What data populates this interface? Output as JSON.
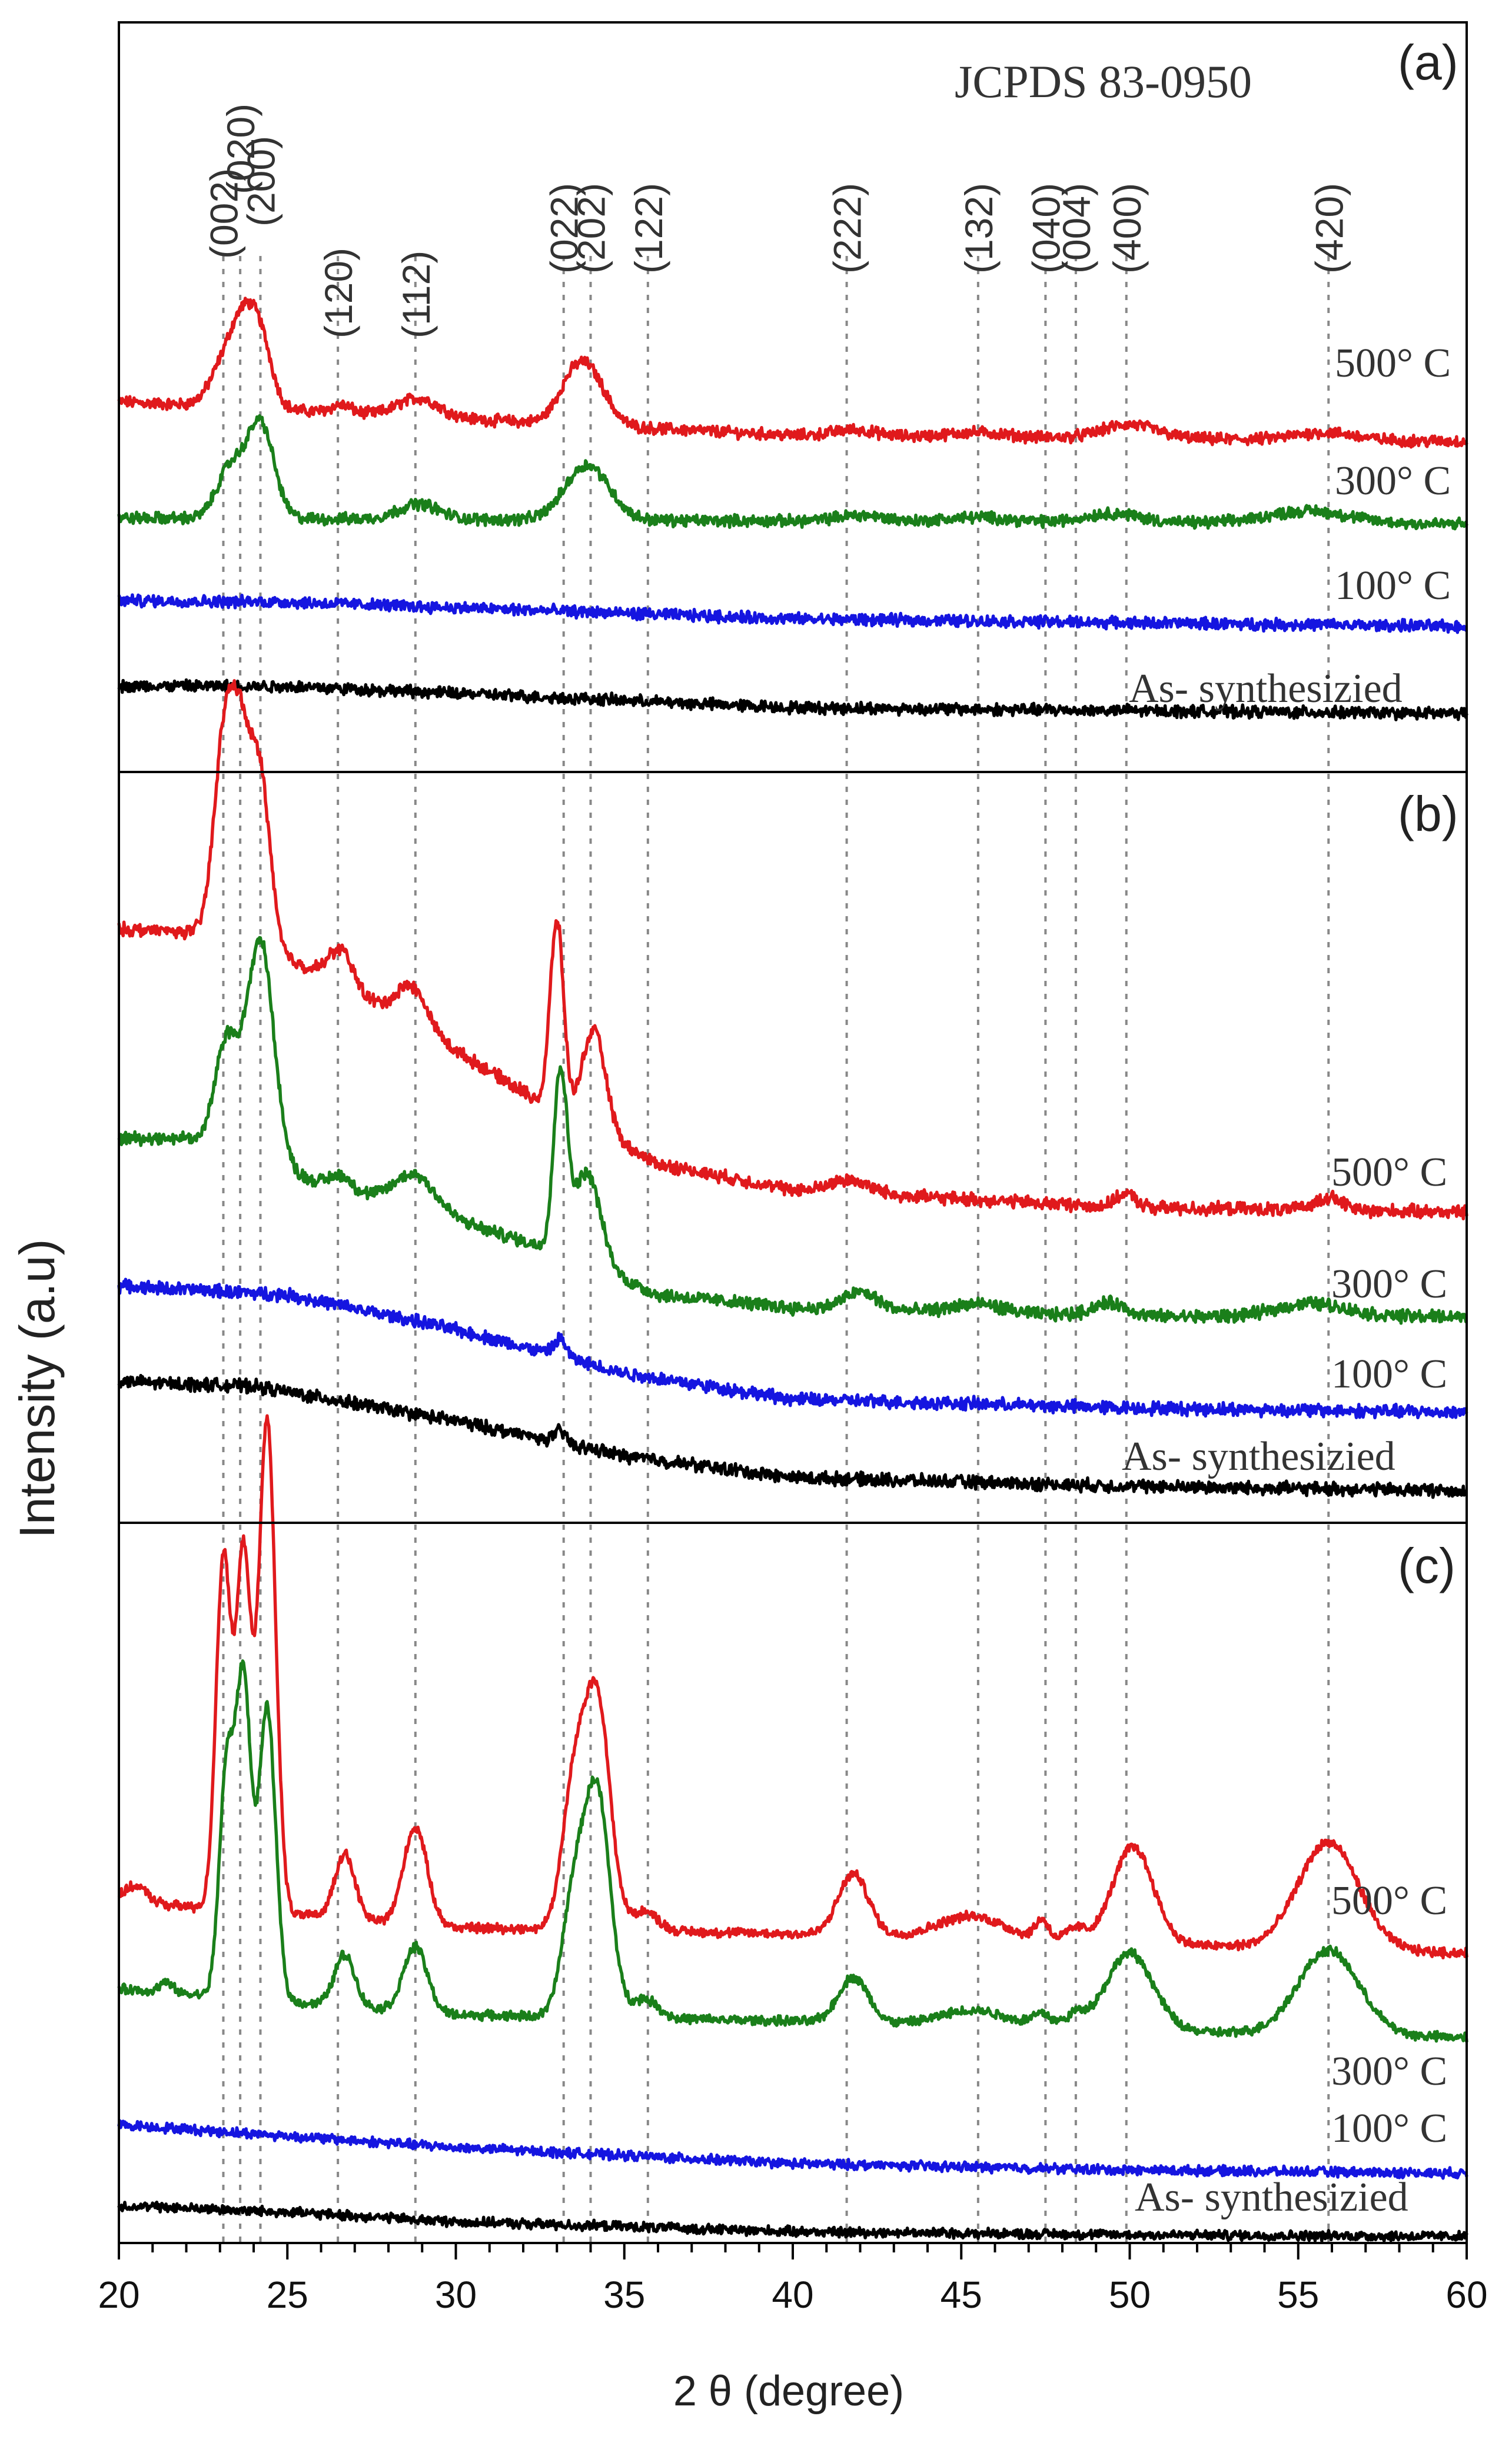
{
  "figure": {
    "reference_label": "JCPDS 83-0950",
    "y_axis_label": "Intensity (a.u)",
    "x_axis_label": "2 θ (degree)",
    "tick_labels": [
      "20",
      "25",
      "30",
      "35",
      "40",
      "45",
      "50",
      "55",
      "60"
    ],
    "colors": {
      "s500": "#e0191c",
      "s300": "#1a7f1a",
      "s100": "#1515e0",
      "as": "#000000",
      "frame": "#000000",
      "ref_line": "#888888"
    }
  },
  "chart_data": {
    "type": "line",
    "xlabel": "2 θ (degree)",
    "ylabel": "Intensity (a.u)",
    "xlim": [
      20,
      60
    ],
    "x_ticks": [
      20,
      25,
      30,
      35,
      40,
      45,
      50,
      55,
      60
    ],
    "grid": false,
    "reference": {
      "label": "JCPDS 83-0950",
      "peaks": [
        {
          "hkl": "(002)",
          "x": 23.1
        },
        {
          "hkl": "(020)",
          "x": 23.6
        },
        {
          "hkl": "(200)",
          "x": 24.2
        },
        {
          "hkl": "(120)",
          "x": 26.5
        },
        {
          "hkl": "(112)",
          "x": 28.8
        },
        {
          "hkl": "(022)",
          "x": 33.2
        },
        {
          "hkl": "(202)",
          "x": 34.0
        },
        {
          "hkl": "(122)",
          "x": 35.7
        },
        {
          "hkl": "(222)",
          "x": 41.6
        },
        {
          "hkl": "(132)",
          "x": 45.5
        },
        {
          "hkl": "(040)",
          "x": 47.5
        },
        {
          "hkl": "(004)",
          "x": 48.4
        },
        {
          "hkl": "(400)",
          "x": 49.9
        },
        {
          "hkl": "(420)",
          "x": 55.9
        }
      ]
    },
    "panels": [
      {
        "label": "(a)",
        "series": [
          {
            "name": "500° C",
            "color_key": "s500",
            "baseline": [
              [
                20,
                11.2
              ],
              [
                40,
                10.1
              ],
              [
                60,
                9.9
              ]
            ],
            "peaks": [
              [
                23.2,
                1.5,
                0.45
              ],
              [
                23.7,
                1.8,
                0.35
              ],
              [
                24.2,
                2.1,
                0.35
              ],
              [
                26.6,
                0.25,
                0.3
              ],
              [
                28.9,
                0.6,
                0.6
              ],
              [
                33.4,
                1.0,
                0.45
              ],
              [
                34.0,
                1.5,
                0.5
              ],
              [
                41.8,
                0.2,
                0.6
              ],
              [
                45.5,
                0.15,
                0.8
              ],
              [
                50.0,
                0.45,
                0.8
              ],
              [
                55.8,
                0.25,
                0.9
              ]
            ]
          },
          {
            "name": "300° C",
            "color_key": "s300",
            "baseline": [
              [
                20,
                7.4
              ],
              [
                40,
                7.3
              ],
              [
                60,
                7.2
              ]
            ],
            "peaks": [
              [
                23.3,
                1.6,
                0.4
              ],
              [
                24.2,
                3.1,
                0.4
              ],
              [
                28.9,
                0.5,
                0.6
              ],
              [
                33.9,
                1.8,
                0.65
              ],
              [
                42.0,
                0.2,
                0.7
              ],
              [
                45.5,
                0.15,
                0.9
              ],
              [
                49.5,
                0.3,
                0.8
              ],
              [
                55.3,
                0.4,
                1.2
              ]
            ]
          },
          {
            "name": "100° C",
            "color_key": "s100",
            "baseline": [
              [
                20,
                4.7
              ],
              [
                25,
                4.65
              ],
              [
                40,
                4.1
              ],
              [
                60,
                3.85
              ]
            ],
            "peaks": []
          },
          {
            "name": "As- synthesizied",
            "color_key": "as",
            "baseline": [
              [
                20,
                1.9
              ],
              [
                25,
                1.9
              ],
              [
                40,
                1.2
              ],
              [
                60,
                1.0
              ]
            ],
            "peaks": []
          }
        ]
      },
      {
        "label": "(b)",
        "series": [
          {
            "name": "500° C",
            "color_key": "s500",
            "baseline": [
              [
                20,
                13.8
              ],
              [
                23,
                13.7
              ],
              [
                26,
                12.8
              ],
              [
                30,
                11.0
              ],
              [
                33,
                9.6
              ],
              [
                36,
                8.4
              ],
              [
                40,
                7.8
              ],
              [
                50,
                7.4
              ],
              [
                60,
                7.3
              ]
            ],
            "peaks": [
              [
                23.1,
                4.0,
                0.3
              ],
              [
                23.6,
                4.1,
                0.3
              ],
              [
                24.2,
                3.8,
                0.3
              ],
              [
                26.6,
                0.8,
                0.35
              ],
              [
                28.7,
                0.9,
                0.45
              ],
              [
                33.0,
                4.4,
                0.2
              ],
              [
                34.1,
                2.3,
                0.35
              ],
              [
                41.7,
                0.3,
                0.6
              ],
              [
                49.9,
                0.3,
                0.3
              ],
              [
                55.9,
                0.3,
                0.4
              ]
            ]
          },
          {
            "name": "300° C",
            "color_key": "s300",
            "baseline": [
              [
                20,
                9.0
              ],
              [
                22,
                9.0
              ],
              [
                25,
                8.2
              ],
              [
                30,
                7.1
              ],
              [
                33,
                6.4
              ],
              [
                36,
                5.4
              ],
              [
                40,
                5.1
              ],
              [
                50,
                4.9
              ],
              [
                60,
                4.9
              ]
            ],
            "peaks": [
              [
                23.2,
                2.5,
                0.35
              ],
              [
                24.2,
                5.1,
                0.4
              ],
              [
                26.6,
                0.3,
                0.3
              ],
              [
                28.8,
                0.8,
                0.6
              ],
              [
                33.1,
                4.0,
                0.2
              ],
              [
                33.9,
                2.1,
                0.4
              ],
              [
                42.0,
                0.4,
                0.5
              ],
              [
                45.5,
                0.2,
                0.7
              ],
              [
                49.4,
                0.3,
                0.5
              ],
              [
                55.4,
                0.3,
                1.0
              ]
            ]
          },
          {
            "name": "100° C",
            "color_key": "s100",
            "baseline": [
              [
                20,
                5.6
              ],
              [
                25,
                5.4
              ],
              [
                30,
                4.6
              ],
              [
                35,
                3.6
              ],
              [
                40,
                3.0
              ],
              [
                50,
                2.8
              ],
              [
                60,
                2.7
              ]
            ],
            "peaks": [
              [
                33.1,
                0.4,
                0.18
              ]
            ]
          },
          {
            "name": "As- synthesizied",
            "color_key": "as",
            "baseline": [
              [
                20,
                3.4
              ],
              [
                24,
                3.3
              ],
              [
                30,
                2.5
              ],
              [
                35,
                1.7
              ],
              [
                40,
                1.2
              ],
              [
                50,
                1.0
              ],
              [
                60,
                0.9
              ]
            ],
            "peaks": [
              [
                33.1,
                0.25,
                0.18
              ]
            ]
          }
        ]
      },
      {
        "label": "(c)",
        "series": [
          {
            "name": "500° C",
            "color_key": "s500",
            "baseline": [
              [
                20,
                10.7
              ],
              [
                30,
                9.9
              ],
              [
                40,
                9.7
              ],
              [
                50,
                9.4
              ],
              [
                60,
                9.1
              ]
            ],
            "peaks": [
              [
                20.5,
                0.5,
                0.35
              ],
              [
                23.1,
                10.8,
                0.22
              ],
              [
                23.7,
                10.9,
                0.22
              ],
              [
                24.4,
                15.2,
                0.25
              ],
              [
                26.7,
                2.0,
                0.3
              ],
              [
                28.8,
                3.0,
                0.35
              ],
              [
                33.5,
                4.2,
                0.35
              ],
              [
                34.2,
                7.0,
                0.38
              ],
              [
                35.6,
                0.6,
                0.4
              ],
              [
                41.8,
                1.9,
                0.45
              ],
              [
                45.3,
                0.7,
                1.0
              ],
              [
                47.4,
                0.6,
                0.2
              ],
              [
                48.4,
                0.4,
                0.3
              ],
              [
                50.1,
                3.0,
                0.6
              ],
              [
                55.9,
                3.3,
                0.9
              ]
            ]
          },
          {
            "name": "300° C",
            "color_key": "s300",
            "baseline": [
              [
                20,
                8.0
              ],
              [
                30,
                7.2
              ],
              [
                40,
                7.0
              ],
              [
                50,
                6.7
              ],
              [
                60,
                6.5
              ]
            ],
            "peaks": [
              [
                21.4,
                0.3,
                0.2
              ],
              [
                23.2,
                7.0,
                0.22
              ],
              [
                23.7,
                9.6,
                0.22
              ],
              [
                24.4,
                9.0,
                0.25
              ],
              [
                26.7,
                1.6,
                0.3
              ],
              [
                28.8,
                2.0,
                0.35
              ],
              [
                33.5,
                3.5,
                0.35
              ],
              [
                34.2,
                6.8,
                0.38
              ],
              [
                35.6,
                0.6,
                0.4
              ],
              [
                41.8,
                1.4,
                0.45
              ],
              [
                45.4,
                0.5,
                1.0
              ],
              [
                47.4,
                0.4,
                0.3
              ],
              [
                48.4,
                0.4,
                0.3
              ],
              [
                50.0,
                2.4,
                0.7
              ],
              [
                55.9,
                2.6,
                0.9
              ]
            ]
          },
          {
            "name": "100° C",
            "color_key": "s100",
            "baseline": [
              [
                20,
                3.8
              ],
              [
                30,
                3.1
              ],
              [
                40,
                2.6
              ],
              [
                50,
                2.4
              ],
              [
                60,
                2.3
              ]
            ],
            "peaks": []
          },
          {
            "name": "As- synthesizied",
            "color_key": "as",
            "baseline": [
              [
                20,
                1.3
              ],
              [
                25,
                1.1
              ],
              [
                30,
                0.8
              ],
              [
                40,
                0.5
              ],
              [
                50,
                0.4
              ],
              [
                60,
                0.35
              ]
            ],
            "peaks": []
          }
        ]
      }
    ]
  }
}
